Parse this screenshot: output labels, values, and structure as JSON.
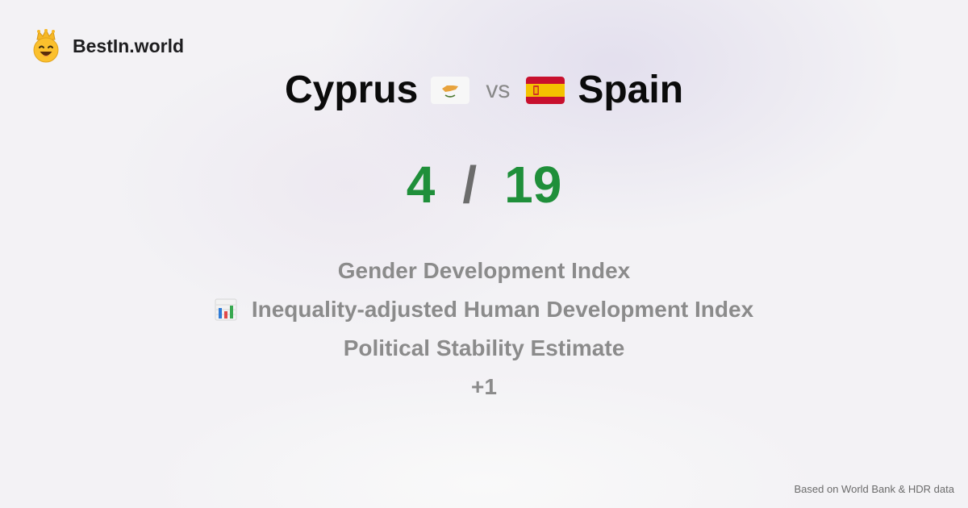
{
  "brand": {
    "name": "BestIn.world",
    "logo_icon": "smiling-face-with-crown-icon"
  },
  "comparison": {
    "left_country": "Cyprus",
    "left_flag_icon": "cyprus-flag-icon",
    "vs_label": "vs",
    "right_country": "Spain",
    "right_flag_icon": "spain-flag-icon"
  },
  "scores": {
    "left": "4",
    "separator": "/",
    "right": "19",
    "color": "#1f8f3a"
  },
  "metrics": [
    {
      "label": "Gender Development Index"
    },
    {
      "label": "Inequality-adjusted Human Development Index",
      "icon": "bar-chart-icon"
    },
    {
      "label": "Political Stability Estimate"
    },
    {
      "label": "+1"
    }
  ],
  "footer": {
    "source_text": "Based on World Bank & HDR data"
  }
}
